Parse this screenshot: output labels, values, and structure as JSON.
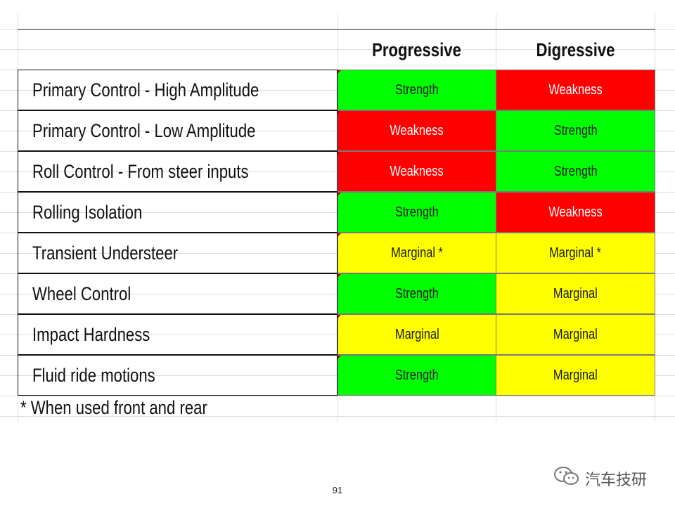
{
  "table": {
    "columns": [
      "Progressive",
      "Digressive"
    ],
    "rows": [
      {
        "label": "Primary Control - High Amplitude",
        "progressive": "Strength",
        "digressive": "Weakness"
      },
      {
        "label": "Primary Control - Low Amplitude",
        "progressive": "Weakness",
        "digressive": "Strength"
      },
      {
        "label": "Roll Control - From steer inputs",
        "progressive": "Weakness",
        "digressive": "Strength"
      },
      {
        "label": "Rolling Isolation",
        "progressive": "Strength",
        "digressive": "Weakness"
      },
      {
        "label": "Transient Understeer",
        "progressive": "Marginal *",
        "digressive": "Marginal *"
      },
      {
        "label": "Wheel Control",
        "progressive": "Strength",
        "digressive": "Marginal"
      },
      {
        "label": "Impact Hardness",
        "progressive": "Marginal",
        "digressive": "Marginal"
      },
      {
        "label": "Fluid ride motions",
        "progressive": "Strength",
        "digressive": "Marginal"
      }
    ],
    "footnote": "* When used front and rear"
  },
  "colors": {
    "Strength": "#00ff00",
    "Weakness": "#ff0000",
    "Marginal": "#ffff00"
  },
  "page_number": "91",
  "watermark": {
    "icon": "wechat-icon",
    "text": "汽车技研"
  }
}
